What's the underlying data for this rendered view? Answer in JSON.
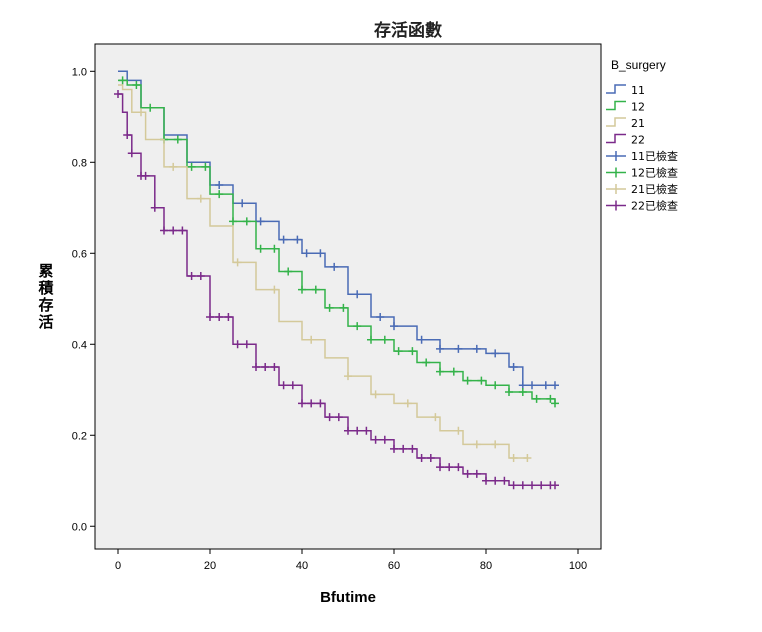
{
  "chart_data": {
    "type": "line",
    "title": "存活函數",
    "xlabel": "Bfutime",
    "ylabel": "累積存活",
    "xlim": [
      -5,
      105
    ],
    "ylim": [
      -0.05,
      1.06
    ],
    "x_ticks": [
      "0",
      "20",
      "40",
      "60",
      "80",
      "100"
    ],
    "x_tick_values": [
      0,
      20,
      40,
      60,
      80,
      100
    ],
    "y_ticks": [
      "0.0",
      "0.2",
      "0.4",
      "0.6",
      "0.8",
      "1.0"
    ],
    "y_tick_values": [
      0.0,
      0.2,
      0.4,
      0.6,
      0.8,
      1.0
    ],
    "plot_background": "#efefef",
    "legend": {
      "title": "B_surgery",
      "position": "right",
      "entries": [
        "11",
        "12",
        "21",
        "22",
        "11已檢查",
        "12已檢查",
        "21已檢查",
        "22已檢查"
      ]
    },
    "series": [
      {
        "name": "11",
        "censored_label": "11已檢查",
        "color": "#4a6bb5",
        "x": [
          0,
          2,
          5,
          10,
          15,
          20,
          25,
          30,
          35,
          40,
          45,
          50,
          55,
          60,
          65,
          70,
          75,
          80,
          85,
          88,
          95
        ],
        "y": [
          1.0,
          0.98,
          0.92,
          0.86,
          0.8,
          0.75,
          0.71,
          0.67,
          0.63,
          0.6,
          0.57,
          0.51,
          0.46,
          0.44,
          0.41,
          0.39,
          0.39,
          0.38,
          0.35,
          0.31,
          0.31
        ],
        "censored_x": [
          22,
          27,
          31,
          36,
          39,
          41,
          44,
          47,
          52,
          57,
          60,
          66,
          70,
          74,
          78,
          82,
          86,
          88,
          90,
          93,
          95
        ]
      },
      {
        "name": "12",
        "censored_label": "12已檢查",
        "color": "#34b34a",
        "x": [
          0,
          2,
          5,
          10,
          15,
          20,
          25,
          30,
          35,
          40,
          45,
          50,
          55,
          60,
          65,
          70,
          75,
          80,
          85,
          90,
          95
        ],
        "y": [
          0.98,
          0.97,
          0.92,
          0.85,
          0.79,
          0.73,
          0.67,
          0.61,
          0.56,
          0.52,
          0.48,
          0.44,
          0.41,
          0.385,
          0.36,
          0.34,
          0.32,
          0.31,
          0.295,
          0.28,
          0.27
        ],
        "censored_x": [
          1,
          4,
          7,
          10,
          13,
          16,
          19,
          22,
          25,
          28,
          31,
          34,
          37,
          40,
          43,
          46,
          49,
          52,
          55,
          58,
          61,
          64,
          67,
          70,
          73,
          76,
          79,
          82,
          85,
          88,
          91,
          94,
          95
        ]
      },
      {
        "name": "21",
        "censored_label": "21已檢查",
        "color": "#d4c99a",
        "x": [
          0,
          1,
          3,
          6,
          10,
          15,
          20,
          25,
          30,
          35,
          40,
          45,
          50,
          55,
          60,
          65,
          70,
          75,
          80,
          85,
          89
        ],
        "y": [
          0.97,
          0.96,
          0.91,
          0.85,
          0.79,
          0.72,
          0.66,
          0.58,
          0.52,
          0.45,
          0.41,
          0.37,
          0.33,
          0.29,
          0.27,
          0.24,
          0.21,
          0.18,
          0.18,
          0.15,
          0.15
        ],
        "censored_x": [
          5,
          12,
          18,
          26,
          34,
          42,
          50,
          56,
          63,
          69,
          74,
          78,
          82,
          86,
          89
        ]
      },
      {
        "name": "22",
        "censored_label": "22已檢查",
        "color": "#7b2a8a",
        "x": [
          0,
          1,
          2,
          3,
          5,
          8,
          10,
          15,
          20,
          25,
          30,
          35,
          40,
          45,
          50,
          55,
          60,
          65,
          70,
          75,
          80,
          85,
          90,
          95
        ],
        "y": [
          0.95,
          0.91,
          0.86,
          0.82,
          0.77,
          0.7,
          0.65,
          0.55,
          0.46,
          0.4,
          0.35,
          0.31,
          0.27,
          0.24,
          0.21,
          0.19,
          0.17,
          0.15,
          0.13,
          0.115,
          0.1,
          0.09,
          0.09,
          0.09
        ],
        "censored_x": [
          0,
          2,
          3,
          5,
          6,
          8,
          10,
          12,
          14,
          16,
          18,
          20,
          22,
          24,
          26,
          28,
          30,
          32,
          34,
          36,
          38,
          40,
          42,
          44,
          46,
          48,
          50,
          52,
          54,
          56,
          58,
          60,
          62,
          64,
          66,
          68,
          70,
          72,
          74,
          76,
          78,
          80,
          82,
          84,
          86,
          88,
          90,
          92,
          94,
          95
        ]
      }
    ]
  }
}
